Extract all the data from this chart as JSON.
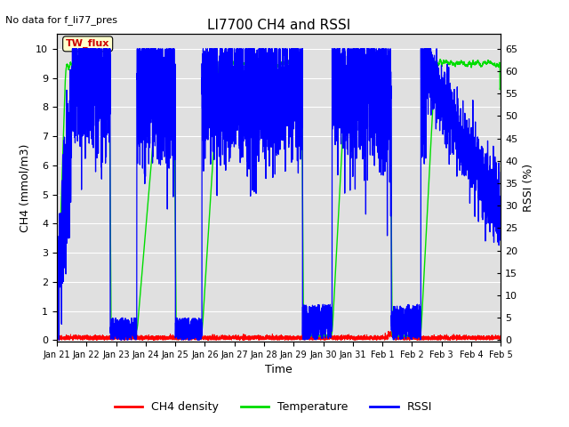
{
  "title": "LI7700 CH4 and RSSI",
  "subtitle": "No data for f_li77_pres",
  "xlabel": "Time",
  "ylabel_left": "CH4 (mmol/m3)",
  "ylabel_right": "RSSI (%)",
  "annotation": "TW_flux",
  "ylim_left": [
    -0.05,
    10.5
  ],
  "ylim_right": [
    -0.325,
    68.25
  ],
  "yticks_left": [
    0.0,
    1.0,
    2.0,
    3.0,
    4.0,
    5.0,
    6.0,
    7.0,
    8.0,
    9.0,
    10.0
  ],
  "yticks_right": [
    0,
    5,
    10,
    15,
    20,
    25,
    30,
    35,
    40,
    45,
    50,
    55,
    60,
    65
  ],
  "xtick_labels": [
    "Jan 21",
    "Jan 22",
    "Jan 23",
    "Jan 24",
    "Jan 25",
    "Jan 26",
    "Jan 27",
    "Jan 28",
    "Jan 29",
    "Jan 30",
    "Jan 31",
    "Feb 1",
    "Feb 2",
    "Feb 3",
    "Feb 4",
    "Feb 5"
  ],
  "color_ch4": "#ff0000",
  "color_temp": "#00dd00",
  "color_rssi": "#0000ff",
  "color_background": "#e0e0e0",
  "color_grid": "#ffffff",
  "legend_labels": [
    "CH4 density",
    "Temperature",
    "RSSI"
  ],
  "n_points": 5000,
  "days": 15
}
